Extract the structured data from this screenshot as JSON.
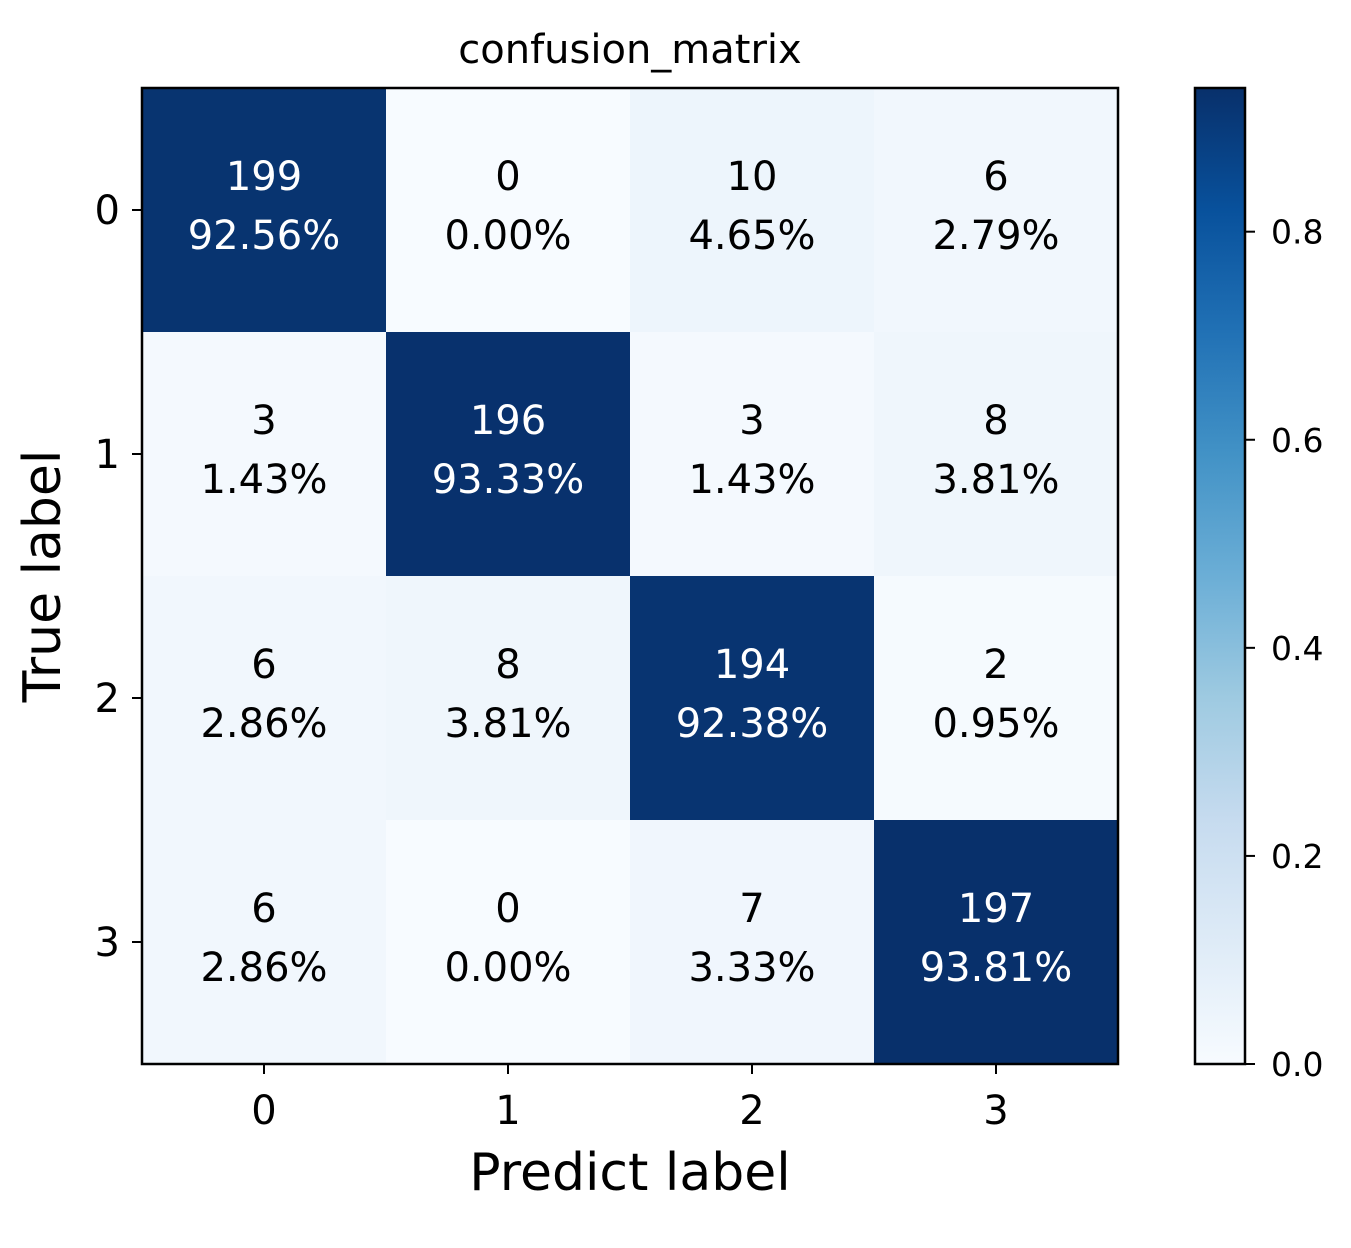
{
  "chart_data": {
    "type": "heatmap",
    "title": "confusion_matrix",
    "xlabel": "Predict label",
    "ylabel": "True label",
    "x_tick_labels": [
      "0",
      "1",
      "2",
      "3"
    ],
    "y_tick_labels": [
      "0",
      "1",
      "2",
      "3"
    ],
    "counts": [
      [
        199,
        0,
        10,
        6
      ],
      [
        3,
        196,
        3,
        8
      ],
      [
        6,
        8,
        194,
        2
      ],
      [
        6,
        0,
        7,
        197
      ]
    ],
    "percent_labels": [
      [
        "92.56%",
        "0.00%",
        "4.65%",
        "2.79%"
      ],
      [
        "1.43%",
        "93.33%",
        "1.43%",
        "3.81%"
      ],
      [
        "2.86%",
        "3.81%",
        "92.38%",
        "0.95%"
      ],
      [
        "2.86%",
        "0.00%",
        "3.33%",
        "93.81%"
      ]
    ],
    "values": [
      [
        0.9256,
        0.0,
        0.0465,
        0.0279
      ],
      [
        0.0143,
        0.9333,
        0.0143,
        0.0381
      ],
      [
        0.0286,
        0.0381,
        0.9238,
        0.0095
      ],
      [
        0.0286,
        0.0,
        0.0333,
        0.9381
      ]
    ],
    "colormap": "Blues",
    "colorbar": {
      "ticks": [
        "0.0",
        "0.2",
        "0.4",
        "0.6",
        "0.8"
      ],
      "range": [
        0,
        0.9381
      ]
    }
  }
}
